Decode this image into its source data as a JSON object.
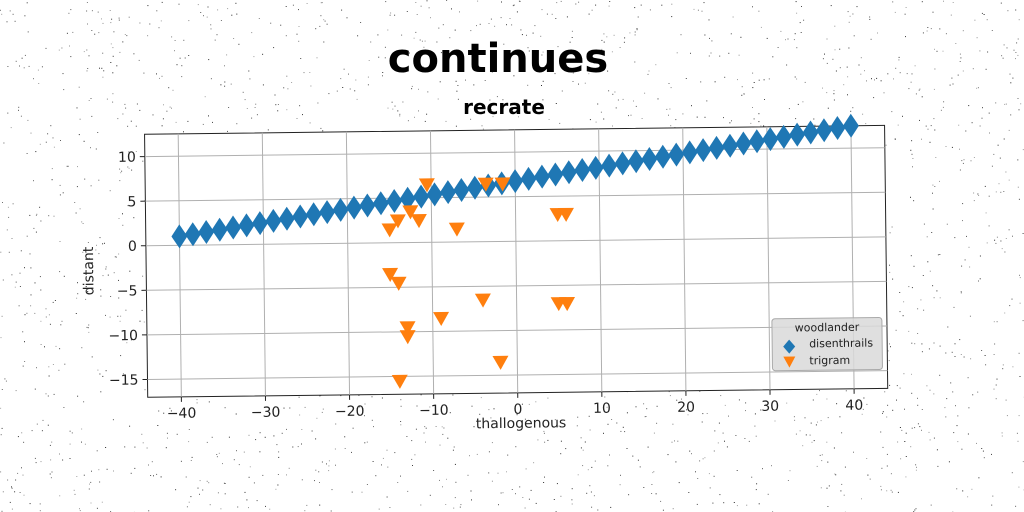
{
  "chart_data": {
    "type": "scatter",
    "title": "continues",
    "subtitle": "recrate",
    "xlabel": "thallogenous",
    "ylabel": "distant",
    "xlim": [
      -44,
      44
    ],
    "ylim": [
      -17,
      12.5
    ],
    "xticks": [
      -40,
      -30,
      -20,
      -10,
      0,
      10,
      20,
      30,
      40
    ],
    "xtick_labels": [
      "−40",
      "−30",
      "−20",
      "−10",
      "0",
      "10",
      "20",
      "30",
      "40"
    ],
    "yticks": [
      -15,
      -10,
      -5,
      0,
      5,
      10
    ],
    "ytick_labels": [
      "−15",
      "−10",
      "−5",
      "0",
      "5",
      "10"
    ],
    "grid": true,
    "legend": {
      "title": "woodlander",
      "placement": "lower-right"
    },
    "series": [
      {
        "name": "disenthrails",
        "marker": "diamond",
        "color": "#1f77b4",
        "x": [
          -40,
          -38.4,
          -36.8,
          -35.2,
          -33.6,
          -32,
          -30.4,
          -28.8,
          -27.2,
          -25.6,
          -24,
          -22.4,
          -20.8,
          -19.2,
          -17.6,
          -16,
          -14.4,
          -12.8,
          -11.2,
          -9.6,
          -8,
          -6.4,
          -4.8,
          -3.2,
          -1.6,
          0,
          1.6,
          3.2,
          4.8,
          6.4,
          8,
          9.6,
          11.2,
          12.8,
          14.4,
          16,
          17.6,
          19.2,
          20.8,
          22.4,
          24,
          25.6,
          27.2,
          28.8,
          30.4,
          32,
          33.6,
          35.2,
          36.8,
          38.4,
          40
        ],
        "y": [
          1.0,
          1.23,
          1.46,
          1.69,
          1.92,
          2.15,
          2.38,
          2.61,
          2.84,
          3.07,
          3.3,
          3.53,
          3.76,
          3.99,
          4.22,
          4.45,
          4.68,
          4.91,
          5.14,
          5.37,
          5.6,
          5.83,
          6.06,
          6.29,
          6.52,
          6.75,
          6.98,
          7.21,
          7.44,
          7.67,
          7.9,
          8.13,
          8.36,
          8.59,
          8.82,
          9.05,
          9.28,
          9.51,
          9.74,
          9.97,
          10.2,
          10.43,
          10.66,
          10.89,
          11.12,
          11.35,
          11.58,
          11.81,
          12.04,
          12.27,
          12.5
        ]
      },
      {
        "name": "trigram",
        "marker": "triangle-down",
        "color": "#ff7f0e",
        "x": [
          -10.5,
          -3.5,
          -1.5,
          -12.5,
          -14,
          -11.5,
          -15,
          -7,
          5,
          6,
          -15,
          -14,
          -4,
          5,
          6,
          -9,
          -13,
          -13,
          -2,
          -14
        ],
        "y": [
          6.5,
          6.5,
          6.5,
          3.5,
          2.5,
          2.5,
          1.5,
          1.5,
          3,
          3,
          -3.5,
          -4.5,
          -6.5,
          -7,
          -7,
          -8.5,
          -9.5,
          -10.5,
          -13.5,
          -15.5
        ]
      }
    ]
  }
}
